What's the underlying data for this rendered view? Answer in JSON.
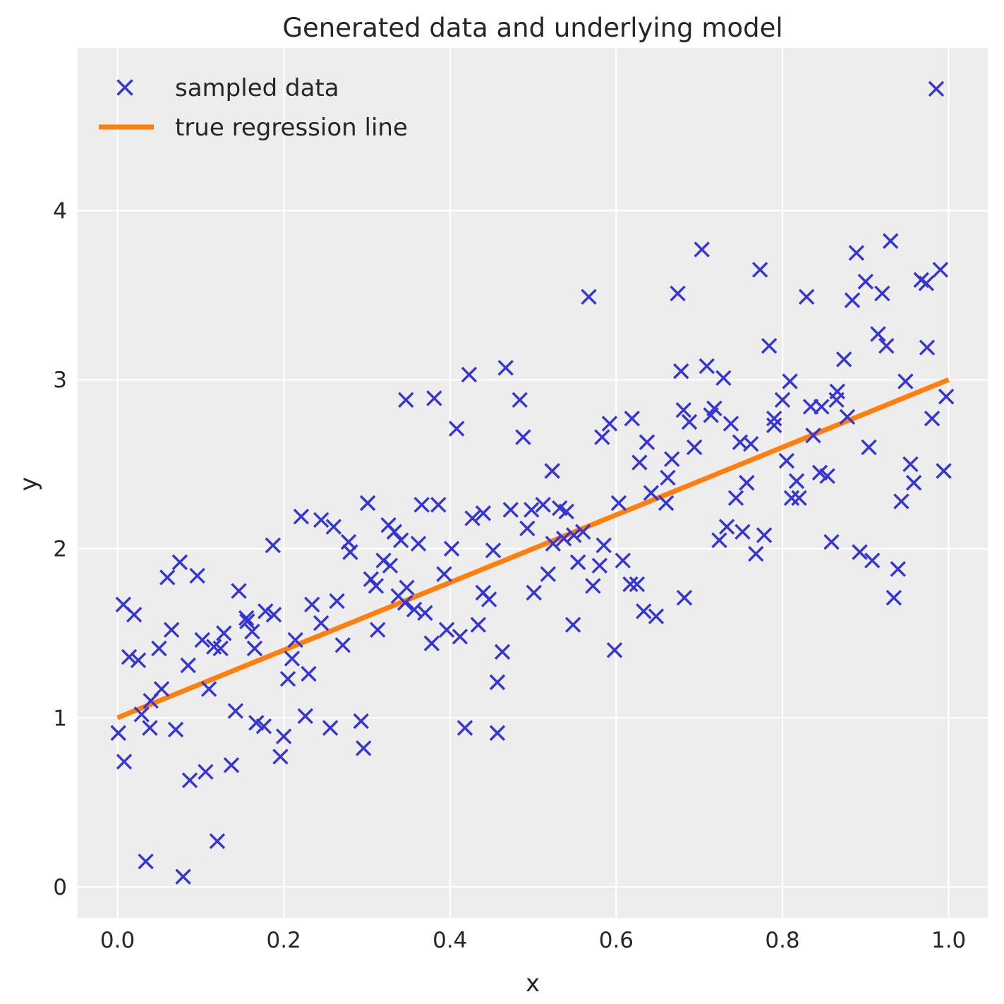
{
  "title": "Generated data and underlying model",
  "axes": {
    "xlabel": "x",
    "ylabel": "y",
    "x_tick_labels": [
      "0.0",
      "0.2",
      "0.4",
      "0.6",
      "0.8",
      "1.0"
    ],
    "y_tick_labels": [
      "0",
      "1",
      "2",
      "3",
      "4"
    ]
  },
  "legend": {
    "items": [
      {
        "label": "sampled data",
        "marker": "x-marker",
        "color": "#3534d4"
      },
      {
        "label": "true regression line",
        "marker": "line",
        "color": "#ff7f0e"
      }
    ]
  },
  "colors": {
    "figure_background": "#ffffff",
    "plot_background": "#ededed",
    "gridline": "#ffffff",
    "text": "#262626",
    "scatter_blue": "#3534d4",
    "line_orange": "#ff7f0e"
  },
  "chart_data": {
    "type": "scatter",
    "title": "Generated data and underlying model",
    "xlabel": "x",
    "ylabel": "y",
    "xlim": [
      -0.048,
      1.047
    ],
    "ylim": [
      -0.184,
      4.962
    ],
    "x_ticks": [
      0.0,
      0.2,
      0.4,
      0.6,
      0.8,
      1.0
    ],
    "y_ticks": [
      0,
      1,
      2,
      3,
      4
    ],
    "grid": true,
    "legend_position": "upper left",
    "series": [
      {
        "name": "sampled data",
        "type": "scatter",
        "marker": "x",
        "color": "#3534d4",
        "points": [
          [
            0.001,
            0.91
          ],
          [
            0.008,
            0.74
          ],
          [
            0.034,
            0.15
          ],
          [
            0.039,
            0.94
          ],
          [
            0.07,
            0.93
          ],
          [
            0.079,
            0.06
          ],
          [
            0.087,
            0.63
          ],
          [
            0.106,
            0.68
          ],
          [
            0.12,
            0.27
          ],
          [
            0.137,
            0.72
          ],
          [
            0.029,
            1.02
          ],
          [
            0.04,
            1.1
          ],
          [
            0.053,
            1.17
          ],
          [
            0.11,
            1.17
          ],
          [
            0.142,
            1.04
          ],
          [
            0.167,
            0.97
          ],
          [
            0.176,
            0.95
          ],
          [
            0.2,
            0.89
          ],
          [
            0.226,
            1.01
          ],
          [
            0.256,
            0.94
          ],
          [
            0.293,
            0.98
          ],
          [
            0.296,
            0.82
          ],
          [
            0.196,
            0.77
          ],
          [
            0.205,
            1.23
          ],
          [
            0.23,
            1.26
          ],
          [
            0.271,
            1.43
          ],
          [
            0.214,
            1.46
          ],
          [
            0.245,
            1.56
          ],
          [
            0.234,
            1.67
          ],
          [
            0.264,
            1.69
          ],
          [
            0.014,
            1.36
          ],
          [
            0.025,
            1.34
          ],
          [
            0.05,
            1.41
          ],
          [
            0.085,
            1.31
          ],
          [
            0.065,
            1.52
          ],
          [
            0.102,
            1.46
          ],
          [
            0.116,
            1.42
          ],
          [
            0.124,
            1.41
          ],
          [
            0.128,
            1.5
          ],
          [
            0.156,
            1.57
          ],
          [
            0.162,
            1.51
          ],
          [
            0.165,
            1.41
          ],
          [
            0.21,
            1.35
          ],
          [
            0.007,
            1.67
          ],
          [
            0.02,
            1.61
          ],
          [
            0.06,
            1.83
          ],
          [
            0.075,
            1.92
          ],
          [
            0.096,
            1.84
          ],
          [
            0.146,
            1.75
          ],
          [
            0.155,
            1.59
          ],
          [
            0.178,
            1.63
          ],
          [
            0.188,
            1.61
          ],
          [
            0.187,
            2.02
          ],
          [
            0.221,
            2.19
          ],
          [
            0.245,
            2.17
          ],
          [
            0.26,
            2.13
          ],
          [
            0.278,
            2.04
          ],
          [
            0.28,
            1.98
          ],
          [
            0.301,
            2.27
          ],
          [
            0.32,
            1.93
          ],
          [
            0.328,
            1.9
          ],
          [
            0.305,
            1.82
          ],
          [
            0.311,
            1.78
          ],
          [
            0.326,
            2.14
          ],
          [
            0.333,
            2.1
          ],
          [
            0.341,
            2.05
          ],
          [
            0.362,
            2.03
          ],
          [
            0.366,
            2.26
          ],
          [
            0.386,
            2.26
          ],
          [
            0.393,
            1.85
          ],
          [
            0.402,
            2.0
          ],
          [
            0.427,
            2.18
          ],
          [
            0.44,
            2.21
          ],
          [
            0.473,
            2.23
          ],
          [
            0.498,
            2.23
          ],
          [
            0.512,
            2.26
          ],
          [
            0.532,
            2.24
          ],
          [
            0.54,
            2.22
          ],
          [
            0.493,
            2.12
          ],
          [
            0.452,
            1.99
          ],
          [
            0.338,
            1.72
          ],
          [
            0.348,
            1.77
          ],
          [
            0.346,
            1.68
          ],
          [
            0.357,
            1.64
          ],
          [
            0.37,
            1.62
          ],
          [
            0.44,
            1.74
          ],
          [
            0.447,
            1.7
          ],
          [
            0.524,
            2.03
          ],
          [
            0.537,
            2.06
          ],
          [
            0.549,
            2.08
          ],
          [
            0.56,
            2.1
          ],
          [
            0.585,
            2.02
          ],
          [
            0.554,
            1.92
          ],
          [
            0.58,
            1.9
          ],
          [
            0.608,
            1.93
          ],
          [
            0.518,
            1.85
          ],
          [
            0.501,
            1.74
          ],
          [
            0.572,
            1.78
          ],
          [
            0.617,
            1.79
          ],
          [
            0.625,
            1.79
          ],
          [
            0.633,
            1.63
          ],
          [
            0.648,
            1.6
          ],
          [
            0.682,
            1.71
          ],
          [
            0.457,
            1.21
          ],
          [
            0.418,
            0.94
          ],
          [
            0.457,
            0.91
          ],
          [
            0.378,
            1.44
          ],
          [
            0.396,
            1.52
          ],
          [
            0.412,
            1.48
          ],
          [
            0.434,
            1.55
          ],
          [
            0.463,
            1.39
          ],
          [
            0.598,
            1.4
          ],
          [
            0.548,
            1.55
          ],
          [
            0.313,
            1.52
          ],
          [
            0.347,
            2.88
          ],
          [
            0.381,
            2.89
          ],
          [
            0.423,
            3.03
          ],
          [
            0.467,
            3.07
          ],
          [
            0.484,
            2.88
          ],
          [
            0.408,
            2.71
          ],
          [
            0.488,
            2.66
          ],
          [
            0.592,
            2.74
          ],
          [
            0.619,
            2.77
          ],
          [
            0.583,
            2.66
          ],
          [
            0.637,
            2.63
          ],
          [
            0.628,
            2.51
          ],
          [
            0.667,
            2.53
          ],
          [
            0.523,
            2.46
          ],
          [
            0.662,
            2.42
          ],
          [
            0.642,
            2.33
          ],
          [
            0.603,
            2.27
          ],
          [
            0.66,
            2.27
          ],
          [
            0.694,
            2.6
          ],
          [
            0.567,
            3.49
          ],
          [
            0.674,
            3.51
          ],
          [
            0.985,
            4.72
          ],
          [
            0.703,
            3.77
          ],
          [
            0.773,
            3.65
          ],
          [
            0.889,
            3.75
          ],
          [
            0.93,
            3.82
          ],
          [
            0.9,
            3.58
          ],
          [
            0.967,
            3.59
          ],
          [
            0.973,
            3.57
          ],
          [
            0.99,
            3.65
          ],
          [
            0.829,
            3.49
          ],
          [
            0.884,
            3.47
          ],
          [
            0.92,
            3.51
          ],
          [
            0.915,
            3.27
          ],
          [
            0.925,
            3.2
          ],
          [
            0.974,
            3.19
          ],
          [
            0.874,
            3.12
          ],
          [
            0.784,
            3.2
          ],
          [
            0.709,
            3.08
          ],
          [
            0.678,
            3.05
          ],
          [
            0.729,
            3.01
          ],
          [
            0.809,
            2.99
          ],
          [
            0.948,
            2.99
          ],
          [
            0.8,
            2.88
          ],
          [
            0.866,
            2.93
          ],
          [
            0.865,
            2.88
          ],
          [
            0.834,
            2.84
          ],
          [
            0.847,
            2.84
          ],
          [
            0.997,
            2.9
          ],
          [
            0.681,
            2.82
          ],
          [
            0.688,
            2.75
          ],
          [
            0.714,
            2.79
          ],
          [
            0.718,
            2.83
          ],
          [
            0.738,
            2.74
          ],
          [
            0.878,
            2.78
          ],
          [
            0.98,
            2.77
          ],
          [
            0.79,
            2.77
          ],
          [
            0.79,
            2.73
          ],
          [
            0.749,
            2.63
          ],
          [
            0.762,
            2.62
          ],
          [
            0.837,
            2.67
          ],
          [
            0.904,
            2.6
          ],
          [
            0.805,
            2.52
          ],
          [
            0.954,
            2.5
          ],
          [
            0.845,
            2.45
          ],
          [
            0.854,
            2.43
          ],
          [
            0.994,
            2.46
          ],
          [
            0.817,
            2.4
          ],
          [
            0.958,
            2.39
          ],
          [
            0.757,
            2.39
          ],
          [
            0.744,
            2.3
          ],
          [
            0.811,
            2.3
          ],
          [
            0.82,
            2.3
          ],
          [
            0.943,
            2.28
          ],
          [
            0.733,
            2.13
          ],
          [
            0.724,
            2.05
          ],
          [
            0.752,
            2.1
          ],
          [
            0.778,
            2.08
          ],
          [
            0.768,
            1.97
          ],
          [
            0.859,
            2.04
          ],
          [
            0.893,
            1.98
          ],
          [
            0.908,
            1.93
          ],
          [
            0.939,
            1.88
          ],
          [
            0.934,
            1.71
          ]
        ]
      },
      {
        "name": "true regression line",
        "type": "line",
        "color": "#ff7f0e",
        "points": [
          [
            0.0,
            1.0
          ],
          [
            1.0,
            3.0
          ]
        ]
      }
    ]
  }
}
